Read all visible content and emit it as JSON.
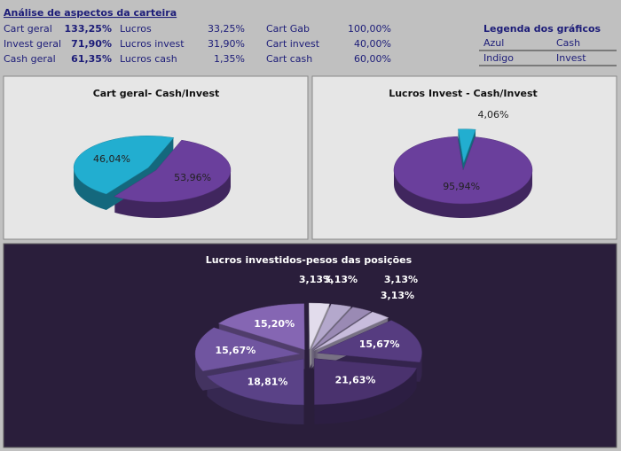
{
  "header": {
    "title": "Análise de aspectos da carteira",
    "rows": [
      [
        "Cart geral",
        "133,25%",
        "Lucros",
        "33,25%",
        "Cart Gab",
        "100,00%"
      ],
      [
        "Invest geral",
        "71,90%",
        "Lucros invest",
        "31,90%",
        "Cart invest",
        "40,00%"
      ],
      [
        "Cash geral",
        "61,35%",
        "Lucros cash",
        "1,35%",
        "Cart cash",
        "60,00%"
      ]
    ]
  },
  "legend": {
    "title": "Legenda dos gráficos",
    "rows": [
      [
        "Azul",
        "Cash"
      ],
      [
        "Indigo",
        "Invest"
      ]
    ]
  },
  "chart_data": [
    {
      "type": "pie",
      "title": "Cart geral- Cash/Invest",
      "values": [
        53.96,
        46.04
      ],
      "value_labels": [
        "53,96%",
        "46,04%"
      ],
      "colors": [
        "#6a3f9c",
        "#22aed0"
      ]
    },
    {
      "type": "pie",
      "title": "Lucros Invest - Cash/Invest",
      "values": [
        95.94,
        4.06
      ],
      "value_labels": [
        "95,94%",
        "4,06%"
      ],
      "colors": [
        "#6a3f9c",
        "#22aed0"
      ]
    },
    {
      "type": "pie",
      "title": "Lucros investidos-pesos das posições",
      "values": [
        15.67,
        21.63,
        18.81,
        15.67,
        15.2,
        3.13,
        3.13,
        3.13,
        3.13
      ],
      "value_labels": [
        "15,67%",
        "21,63%",
        "18,81%",
        "15,67%",
        "15,20%",
        "3,13%",
        "3,13%",
        "3,13%",
        "3,13%"
      ],
      "colors": [
        "#563c80",
        "#4a326e",
        "#5a4287",
        "#7055a0",
        "#8566b3",
        "#e2dcec",
        "#b4a8cc",
        "#9a8ab4",
        "#c8bcdc"
      ]
    }
  ]
}
